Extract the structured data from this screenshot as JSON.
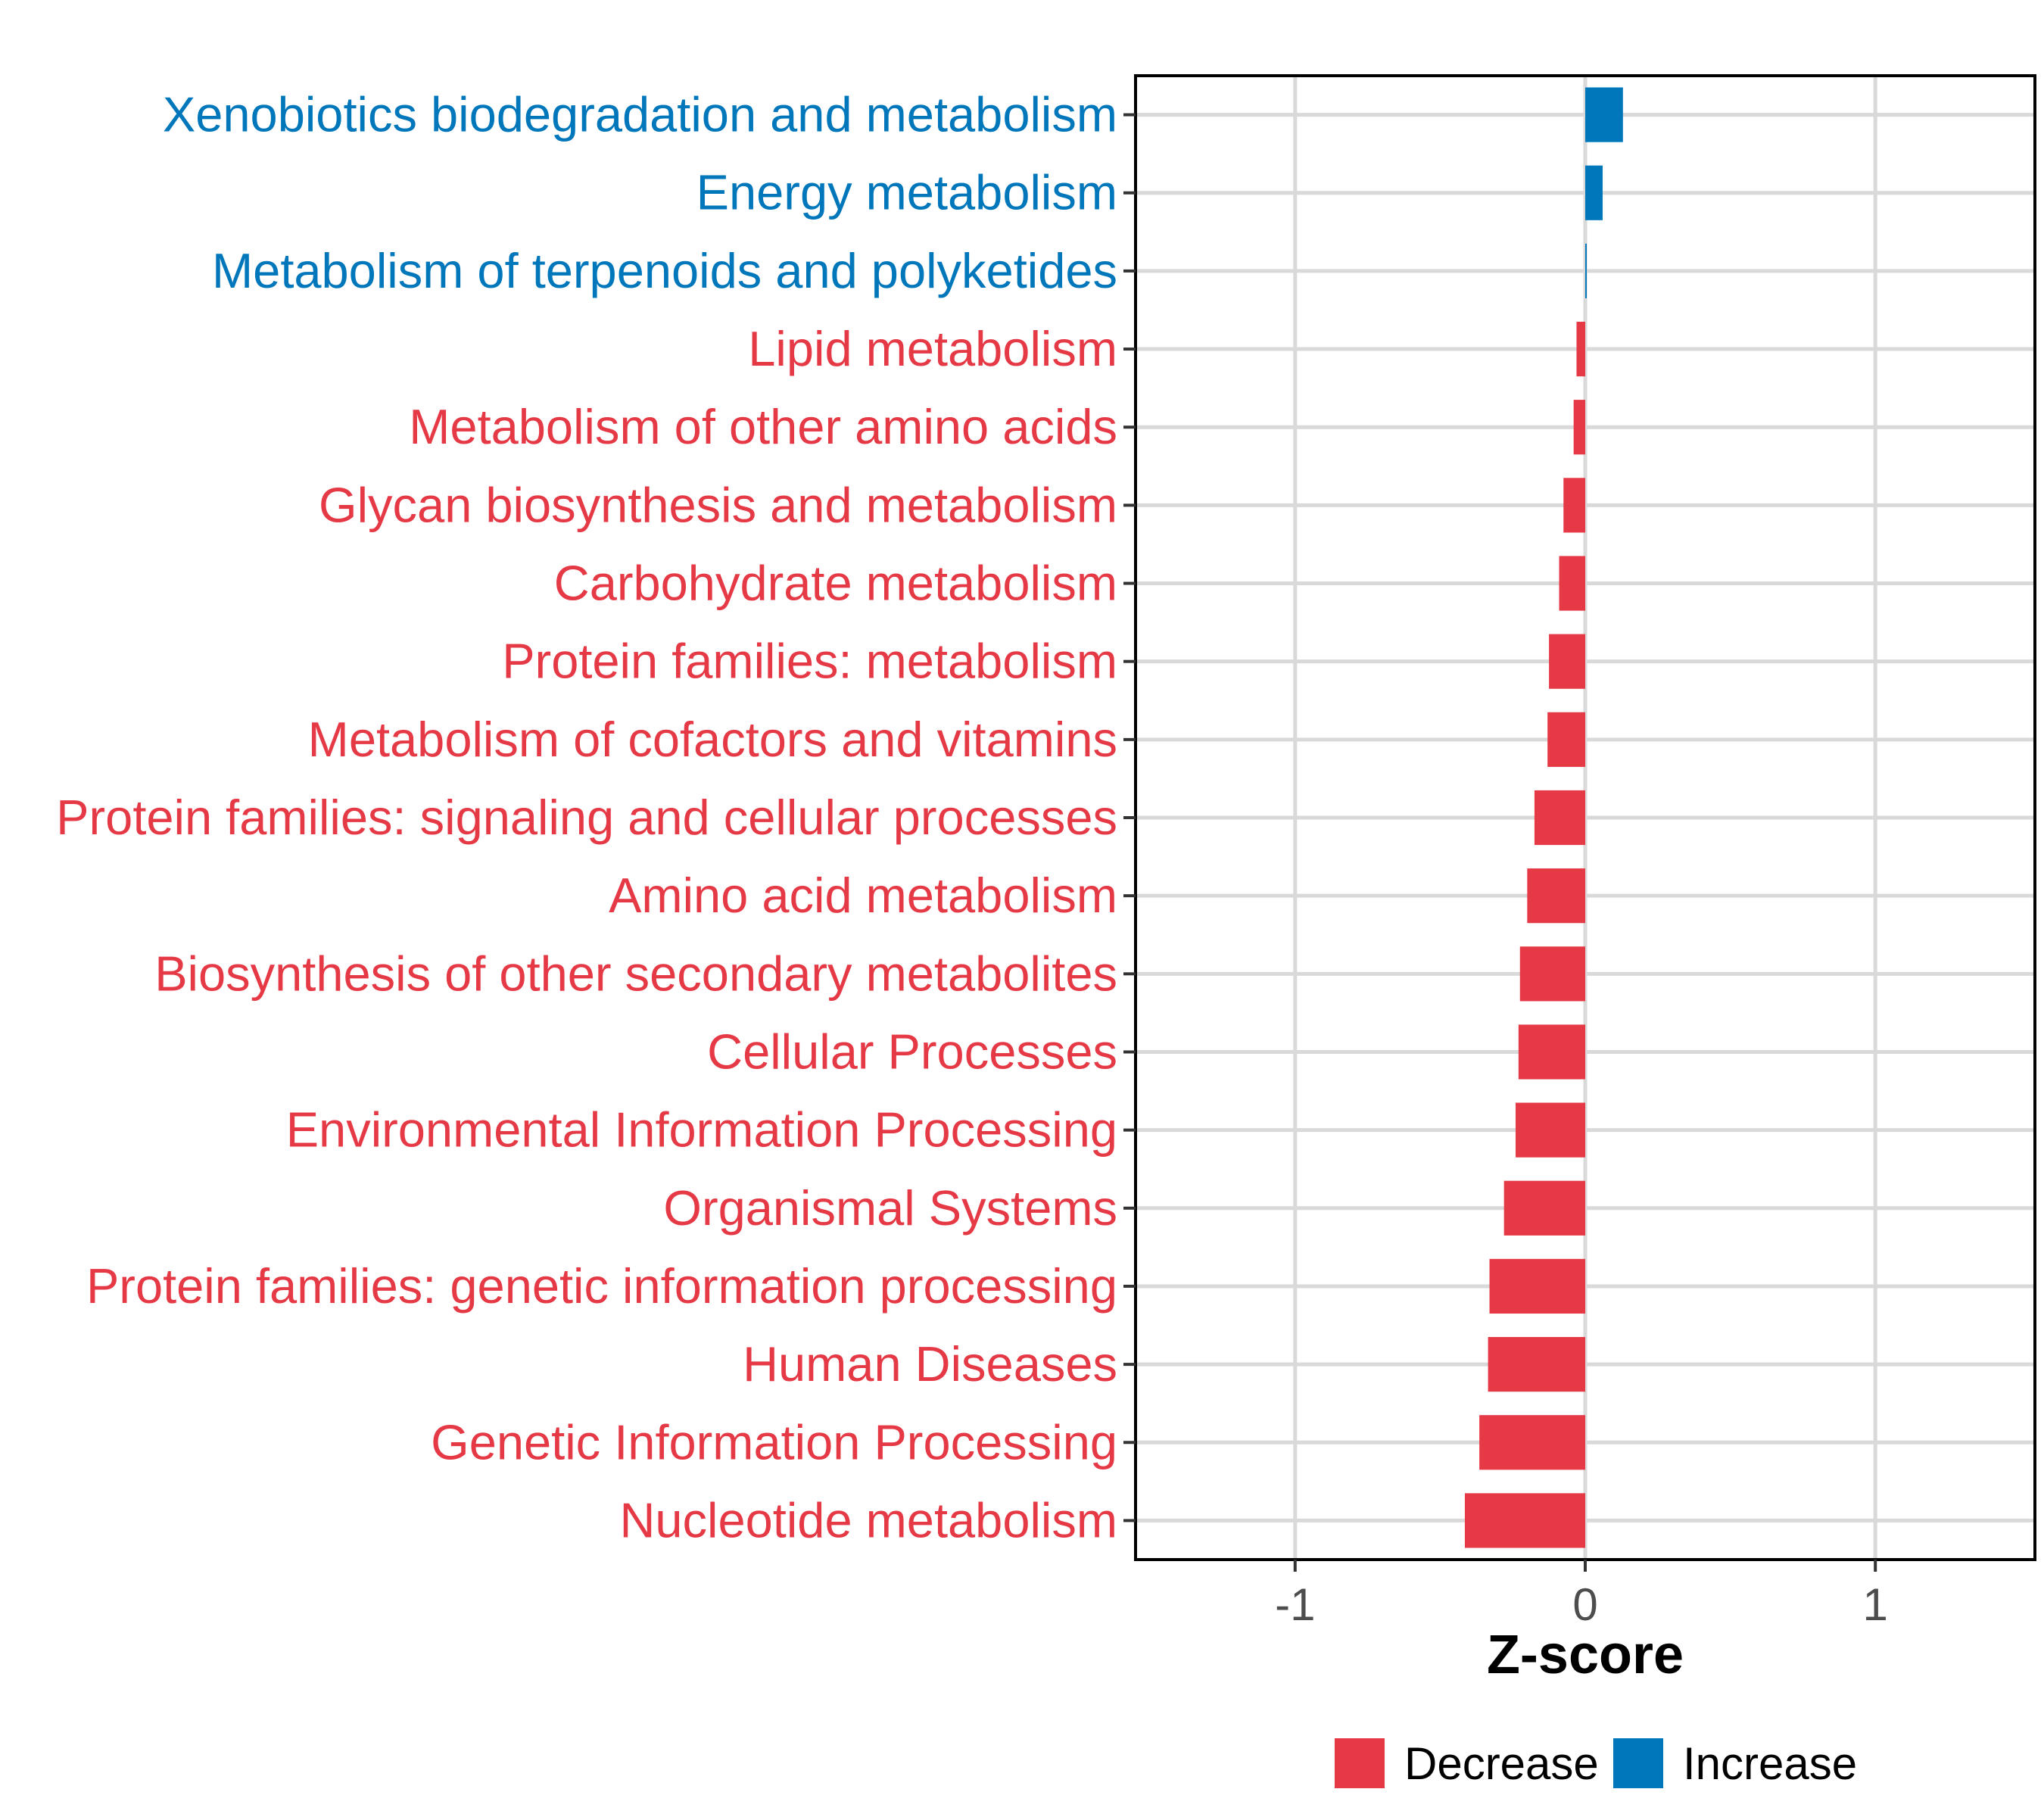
{
  "chart_data": {
    "type": "bar",
    "orientation": "horizontal",
    "categories": [
      "Xenobiotics biodegradation and metabolism",
      "Energy metabolism",
      "Metabolism of terpenoids and polyketides",
      "Lipid metabolism",
      "Metabolism of other amino acids",
      "Glycan biosynthesis and metabolism",
      "Carbohydrate metabolism",
      "Protein families: metabolism",
      "Metabolism of cofactors and vitamins",
      "Protein families: signaling and cellular processes",
      "Amino acid metabolism",
      "Biosynthesis of other secondary metabolites",
      "Cellular Processes",
      "Environmental Information Processing",
      "Organismal Systems",
      "Protein families: genetic information processing",
      "Human Diseases",
      "Genetic Information Processing",
      "Nucleotide metabolism"
    ],
    "values": [
      0.13,
      0.06,
      0.003,
      -0.03,
      -0.04,
      -0.075,
      -0.09,
      -0.125,
      -0.13,
      -0.175,
      -0.2,
      -0.225,
      -0.23,
      -0.24,
      -0.28,
      -0.33,
      -0.335,
      -0.365,
      -0.415
    ],
    "groups": [
      "Increase",
      "Increase",
      "Increase",
      "Decrease",
      "Decrease",
      "Decrease",
      "Decrease",
      "Decrease",
      "Decrease",
      "Decrease",
      "Decrease",
      "Decrease",
      "Decrease",
      "Decrease",
      "Decrease",
      "Decrease",
      "Decrease",
      "Decrease",
      "Decrease"
    ],
    "title": "",
    "xlabel": "Z-score",
    "ylabel": "",
    "xlim": [
      -1.55,
      1.55
    ],
    "xticks": [
      -1,
      0,
      1
    ],
    "xtick_labels": [
      "-1",
      "0",
      "1"
    ],
    "grid": true,
    "legend": {
      "placement": "bottom",
      "entries": [
        {
          "name": "Decrease",
          "color": "#e63946"
        },
        {
          "name": "Increase",
          "color": "#0077bb"
        }
      ]
    },
    "colors": {
      "Decrease": "#e63946",
      "Increase": "#0077bb"
    }
  }
}
